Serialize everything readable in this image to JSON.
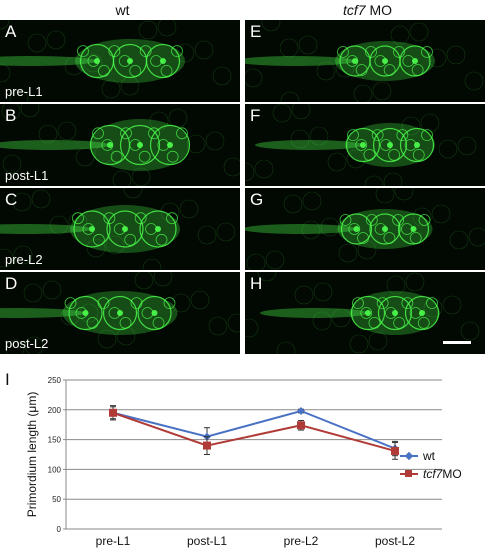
{
  "figure": {
    "col_headers": {
      "left": "wt",
      "right_italic": "tcf7",
      "right_rest": " MO"
    },
    "panels": [
      {
        "letter": "A",
        "stage": "pre-L1"
      },
      {
        "letter": "B",
        "stage": "post-L1"
      },
      {
        "letter": "C",
        "stage": "pre-L2"
      },
      {
        "letter": "D",
        "stage": "post-L2"
      },
      {
        "letter": "E",
        "stage": ""
      },
      {
        "letter": "F",
        "stage": ""
      },
      {
        "letter": "G",
        "stage": ""
      },
      {
        "letter": "H",
        "stage": ""
      }
    ],
    "chart_letter": "I"
  },
  "colors": {
    "wt": "#4a72c4",
    "mo": "#b03a36",
    "fluor": "#4cff4c"
  },
  "chart_data": {
    "type": "line",
    "categories": [
      "pre-L1",
      "post-L1",
      "pre-L2",
      "post-L2"
    ],
    "ylabel": "Primordium length (μm)",
    "ylim": [
      0,
      250
    ],
    "yticks": [
      0,
      50,
      100,
      150,
      200,
      250
    ],
    "grid": true,
    "legend_position": "right",
    "series": [
      {
        "name": "wt",
        "name_italic": "",
        "name_rest": "wt",
        "values": [
          195,
          155,
          198,
          135
        ],
        "errors": [
          10,
          15,
          3,
          12
        ],
        "marker": "diamond"
      },
      {
        "name": "tcf7 MO",
        "name_italic": "tcf7",
        "name_rest": " MO",
        "values": [
          195,
          140,
          174,
          131
        ],
        "errors": [
          12,
          15,
          8,
          14
        ],
        "marker": "square"
      }
    ]
  }
}
